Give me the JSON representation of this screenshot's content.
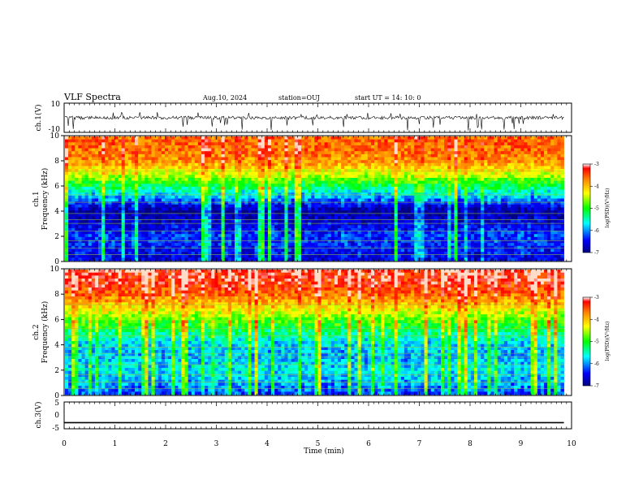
{
  "header": {
    "title": "VLF Spectra",
    "date": "Aug.10, 2024",
    "station": "station=OUJ",
    "start": "start  UT  =   14: 10: 0"
  },
  "chart_data": [
    {
      "panel": "ch1-waveform",
      "type": "line",
      "ylabel": "ch.1(V)",
      "ylim": [
        -10,
        10
      ],
      "yticks": [
        "10",
        "-10"
      ],
      "xlim": [
        0,
        10
      ],
      "description_values": {
        "baseline": 0,
        "spike_min": -9,
        "spike_max": 4
      }
    },
    {
      "panel": "ch1-spectrogram",
      "type": "heatmap",
      "ylabel": "Frequency  (kHz)",
      "chlabel": "ch.1",
      "ylim": [
        0,
        10
      ],
      "yticks": [
        "0",
        "2",
        "4",
        "6",
        "8",
        "10"
      ],
      "xlim": [
        0,
        10
      ],
      "colorbar": {
        "label": "log(PSD)(V²/Hz)",
        "range": [
          -7,
          -3
        ],
        "ticks": [
          "-3",
          "-4",
          "-5",
          "-6",
          "-7"
        ]
      },
      "frequency_profile_log_psd": [
        [
          0,
          -6.6
        ],
        [
          1,
          -6.4
        ],
        [
          2,
          -6.3
        ],
        [
          3,
          -6.6
        ],
        [
          4,
          -6.9
        ],
        [
          5,
          -6.0
        ],
        [
          6,
          -5.2
        ],
        [
          7,
          -4.4
        ],
        [
          8,
          -3.8
        ],
        [
          9,
          -3.6
        ],
        [
          10,
          -3.6
        ]
      ],
      "data_end_min": 9.85
    },
    {
      "panel": "ch2-spectrogram",
      "type": "heatmap",
      "ylabel": "Frequency  (kHz)",
      "chlabel": "ch.2",
      "ylim": [
        0,
        10
      ],
      "yticks": [
        "0",
        "2",
        "4",
        "6",
        "8",
        "10"
      ],
      "xlim": [
        0,
        10
      ],
      "colorbar": {
        "label": "log(PSD)(V²/Hz)",
        "range": [
          -7,
          -3
        ],
        "ticks": [
          "-3",
          "-4",
          "-5",
          "-6",
          "-7"
        ]
      },
      "frequency_profile_log_psd": [
        [
          0,
          -6.3
        ],
        [
          1,
          -5.9
        ],
        [
          2,
          -5.7
        ],
        [
          3,
          -5.9
        ],
        [
          4,
          -5.8
        ],
        [
          5,
          -5.3
        ],
        [
          6,
          -4.8
        ],
        [
          7,
          -4.2
        ],
        [
          8,
          -3.6
        ],
        [
          9,
          -3.3
        ],
        [
          10,
          -3.2
        ]
      ],
      "data_end_min": 9.85
    },
    {
      "panel": "ch3-waveform",
      "type": "line",
      "ylabel": "ch.3(V)",
      "ylim": [
        -5,
        5
      ],
      "yticks": [
        "5",
        "0",
        "-5"
      ],
      "xlim": [
        0,
        10
      ],
      "constant_value": -2.7
    }
  ],
  "xaxis": {
    "label": "Time  (min)",
    "ticks": [
      "0",
      "1",
      "2",
      "3",
      "4",
      "5",
      "6",
      "7",
      "8",
      "9",
      "10"
    ]
  }
}
